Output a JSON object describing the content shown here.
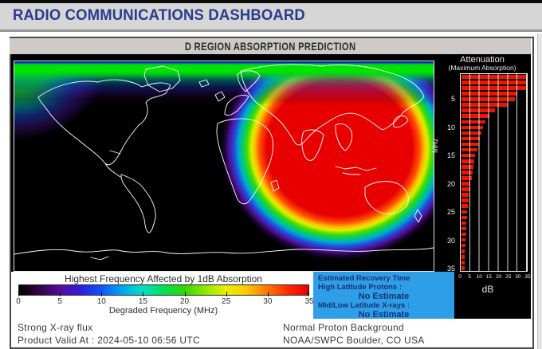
{
  "header": {
    "title": "RADIO COMMUNICATIONS DASHBOARD"
  },
  "panel": {
    "title": "D REGION ABSORPTION PREDICTION"
  },
  "chart_data": [
    {
      "type": "bar",
      "orientation": "horizontal",
      "title": "Attenuation",
      "subtitle": "(Maximum Absorption)",
      "xlabel": "dB",
      "ylabel": "MHz",
      "xlim": [
        0,
        35
      ],
      "x_ticks": [
        0,
        5,
        10,
        15,
        20,
        25,
        30,
        35
      ],
      "y_ticks": [
        5,
        10,
        15,
        20,
        25,
        30,
        35
      ],
      "categories_mhz": [
        1,
        2,
        3,
        4,
        5,
        6,
        7,
        8,
        9,
        10,
        11,
        12,
        13,
        14,
        15,
        16,
        17,
        18,
        19,
        20,
        21,
        22,
        23,
        24,
        25,
        26,
        27,
        28,
        29,
        30,
        31,
        32,
        33,
        34,
        35
      ],
      "values_db": [
        35,
        35,
        35,
        30,
        29,
        25,
        18,
        15,
        13,
        11.5,
        11,
        10,
        9.5,
        8.5,
        7.5,
        7,
        6.5,
        6,
        5.5,
        4.5,
        4.2,
        4,
        3.8,
        3.5,
        3.2,
        3,
        2.8,
        2.6,
        2.4,
        2.2,
        2,
        1.9,
        1.8,
        1.7,
        1.6
      ],
      "bar_color": "#ee1500",
      "grid": "vertical white lines every 5 dB",
      "legend_position": "none"
    },
    {
      "type": "colorbar",
      "title": "Highest Frequency Affected by 1dB Absorption",
      "xlabel": "Degraded Frequency (MHz)",
      "ticks": [
        0,
        5,
        10,
        15,
        20,
        25,
        30,
        35
      ],
      "gradient_stops": [
        "#000000",
        "#30054a",
        "#5a0a9e",
        "#2d1ee0",
        "#1055ff",
        "#00a8f0",
        "#00e0c0",
        "#00e055",
        "#30d800",
        "#90e800",
        "#e8f000",
        "#ffc800",
        "#ff7800",
        "#ff2a00",
        "#e80000"
      ]
    }
  ],
  "recovery": {
    "title": "Estimated Recovery Time",
    "rows": [
      {
        "label": "High Latitude Protons :",
        "value": "No Estimate"
      },
      {
        "label": "Mid/Low Latitude X-rays :",
        "value": "No Estimate"
      }
    ]
  },
  "footer": {
    "left_line1": "Strong X-ray flux",
    "left_line2": "Product Valid At : 2024-05-10 06:56 UTC",
    "right_line1": "Normal Proton Background",
    "right_line2": "NOAA/SWPC Boulder, CO USA"
  },
  "colors": {
    "header_title": "#293b8f",
    "header_bg": "#d6d6d6",
    "panel_header_bg": "#cccbc9",
    "product_bg": "#000000",
    "bar_red": "#ee1500",
    "recovery_bg": "#2f9ee8",
    "recovery_text": "#16306f",
    "map_hot_core": "#e80000",
    "map_polar_band": "#00e400"
  }
}
